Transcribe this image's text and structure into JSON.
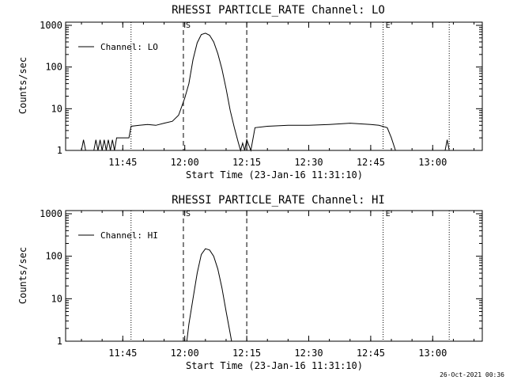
{
  "footer": {
    "timestamp": "26-Oct-2021 00:36"
  },
  "chart_data": [
    {
      "type": "line",
      "title": "RHESSI PARTICLE_RATE Channel: LO",
      "xlabel": "Start Time (23-Jan-16 11:31:10)",
      "ylabel": "Counts/sec",
      "yscale": "log",
      "ylim": [
        1,
        1000
      ],
      "xlim": [
        "11:31:10",
        "13:12:00"
      ],
      "x_ticks": [
        "11:45",
        "12:00",
        "12:15",
        "12:30",
        "12:45",
        "13:00"
      ],
      "y_ticks": [
        "1",
        "10",
        "100",
        "1000"
      ],
      "legend": {
        "label": "Channel: LO",
        "position": "top-left"
      },
      "markers": [
        {
          "label": "S",
          "time": "11:59:40",
          "style": "dashed"
        },
        {
          "label": "",
          "time": "12:15:00",
          "style": "dashed"
        },
        {
          "label": "",
          "time": "11:47:00",
          "style": "dotted"
        },
        {
          "label": "E",
          "time": "12:48:00",
          "style": "dotted"
        },
        {
          "label": "",
          "time": "13:04:00",
          "style": "dotted"
        }
      ],
      "series": [
        {
          "name": "Channel: LO",
          "points": [
            [
              "11:35:00",
              1
            ],
            [
              "11:35:30",
              1.8
            ],
            [
              "11:36:00",
              1
            ],
            [
              "11:38:00",
              1
            ],
            [
              "11:38:30",
              1.8
            ],
            [
              "11:39:00",
              1
            ],
            [
              "11:39:30",
              1.8
            ],
            [
              "11:40:00",
              1
            ],
            [
              "11:40:30",
              1.8
            ],
            [
              "11:41:00",
              1
            ],
            [
              "11:41:30",
              1.8
            ],
            [
              "11:42:00",
              1
            ],
            [
              "11:42:30",
              1.8
            ],
            [
              "11:43:00",
              1
            ],
            [
              "11:43:30",
              2
            ],
            [
              "11:46:30",
              2
            ],
            [
              "11:47:00",
              3.8
            ],
            [
              "11:49:00",
              4
            ],
            [
              "11:51:00",
              4.2
            ],
            [
              "11:53:00",
              4
            ],
            [
              "11:55:00",
              4.5
            ],
            [
              "11:57:00",
              5
            ],
            [
              "11:58:30",
              7
            ],
            [
              "12:00:00",
              18
            ],
            [
              "12:01:00",
              40
            ],
            [
              "12:02:00",
              150
            ],
            [
              "12:03:00",
              380
            ],
            [
              "12:04:00",
              600
            ],
            [
              "12:05:00",
              650
            ],
            [
              "12:06:00",
              580
            ],
            [
              "12:07:00",
              400
            ],
            [
              "12:08:00",
              210
            ],
            [
              "12:09:00",
              90
            ],
            [
              "12:10:00",
              30
            ],
            [
              "12:11:00",
              9
            ],
            [
              "12:12:00",
              3.5
            ],
            [
              "12:13:00",
              1.5
            ],
            [
              "12:13:30",
              1
            ],
            [
              "12:14:00",
              1.5
            ],
            [
              "12:14:30",
              1
            ],
            [
              "12:15:00",
              1.8
            ],
            [
              "12:16:00",
              1
            ],
            [
              "12:17:00",
              3.5
            ],
            [
              "12:20:00",
              3.8
            ],
            [
              "12:25:00",
              4
            ],
            [
              "12:30:00",
              4
            ],
            [
              "12:35:00",
              4.2
            ],
            [
              "12:40:00",
              4.5
            ],
            [
              "12:45:00",
              4.2
            ],
            [
              "12:47:00",
              4
            ],
            [
              "12:49:00",
              3.5
            ],
            [
              "12:50:00",
              2
            ],
            [
              "12:51:00",
              1
            ],
            [
              "12:53:00",
              1
            ],
            [
              "13:03:00",
              1
            ],
            [
              "13:03:30",
              1.8
            ],
            [
              "13:04:00",
              1
            ]
          ]
        }
      ]
    },
    {
      "type": "line",
      "title": "RHESSI PARTICLE_RATE Channel: HI",
      "xlabel": "Start Time (23-Jan-16 11:31:10)",
      "ylabel": "Counts/sec",
      "yscale": "log",
      "ylim": [
        1,
        1000
      ],
      "xlim": [
        "11:31:10",
        "13:12:00"
      ],
      "x_ticks": [
        "11:45",
        "12:00",
        "12:15",
        "12:30",
        "12:45",
        "13:00"
      ],
      "y_ticks": [
        "1",
        "10",
        "100",
        "1000"
      ],
      "legend": {
        "label": "Channel: HI",
        "position": "top-left"
      },
      "markers": [
        {
          "label": "S",
          "time": "11:59:40",
          "style": "dashed"
        },
        {
          "label": "",
          "time": "12:15:00",
          "style": "dashed"
        },
        {
          "label": "",
          "time": "11:47:00",
          "style": "dotted"
        },
        {
          "label": "E",
          "time": "12:48:00",
          "style": "dotted"
        },
        {
          "label": "",
          "time": "13:04:00",
          "style": "dotted"
        }
      ],
      "series": [
        {
          "name": "Channel: HI",
          "points": [
            [
              "12:00:30",
              1
            ],
            [
              "12:01:00",
              2.5
            ],
            [
              "12:02:00",
              10
            ],
            [
              "12:03:00",
              40
            ],
            [
              "12:04:00",
              110
            ],
            [
              "12:05:00",
              150
            ],
            [
              "12:06:00",
              140
            ],
            [
              "12:07:00",
              100
            ],
            [
              "12:08:00",
              50
            ],
            [
              "12:09:00",
              18
            ],
            [
              "12:10:00",
              5
            ],
            [
              "12:11:00",
              1.5
            ],
            [
              "12:11:20",
              1
            ]
          ]
        }
      ]
    }
  ]
}
